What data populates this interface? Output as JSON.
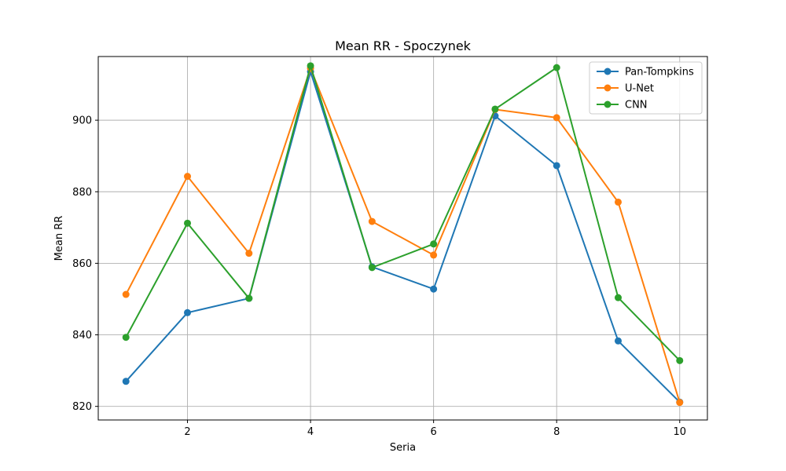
{
  "chart_data": {
    "type": "line",
    "title": "Mean RR - Spoczynek",
    "xlabel": "Seria",
    "ylabel": "Mean RR",
    "xlim": [
      0.55,
      10.45
    ],
    "ylim": [
      816.2,
      917.8
    ],
    "xticks": [
      2,
      4,
      6,
      8,
      10
    ],
    "yticks": [
      820,
      840,
      860,
      880,
      900
    ],
    "grid": true,
    "legend_position": "top-right",
    "x": [
      1,
      2,
      3,
      4,
      5,
      6,
      7,
      8,
      9,
      10
    ],
    "series": [
      {
        "name": "Pan-Tompkins",
        "color": "#1f77b4",
        "values": [
          827.0,
          846.2,
          850.2,
          913.6,
          859.0,
          852.8,
          901.2,
          887.3,
          838.3,
          821.2
        ]
      },
      {
        "name": "U-Net",
        "color": "#ff7f0e",
        "values": [
          851.3,
          884.3,
          862.8,
          914.5,
          871.7,
          862.3,
          903.0,
          900.7,
          877.1,
          821.1
        ]
      },
      {
        "name": "CNN",
        "color": "#2ca02c",
        "values": [
          839.3,
          871.2,
          850.2,
          915.2,
          858.8,
          865.4,
          903.1,
          914.7,
          850.4,
          832.8
        ]
      }
    ]
  }
}
